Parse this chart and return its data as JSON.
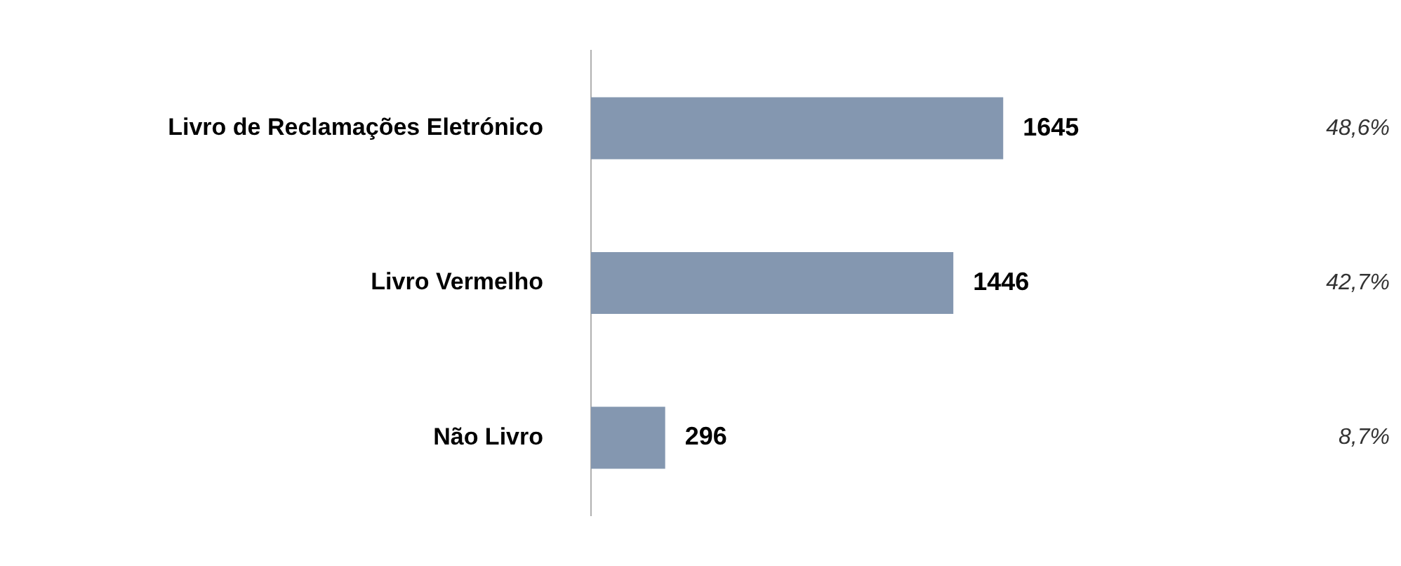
{
  "chart_data": {
    "type": "bar",
    "orientation": "horizontal",
    "categories": [
      "Livro de Reclamações Eletrónico",
      "Livro Vermelho",
      "Não Livro"
    ],
    "values": [
      1645,
      1446,
      296
    ],
    "color": "#8497b0",
    "data_labels": true,
    "annotations": [
      "48,6%",
      "42,7%",
      "8,7%"
    ]
  }
}
